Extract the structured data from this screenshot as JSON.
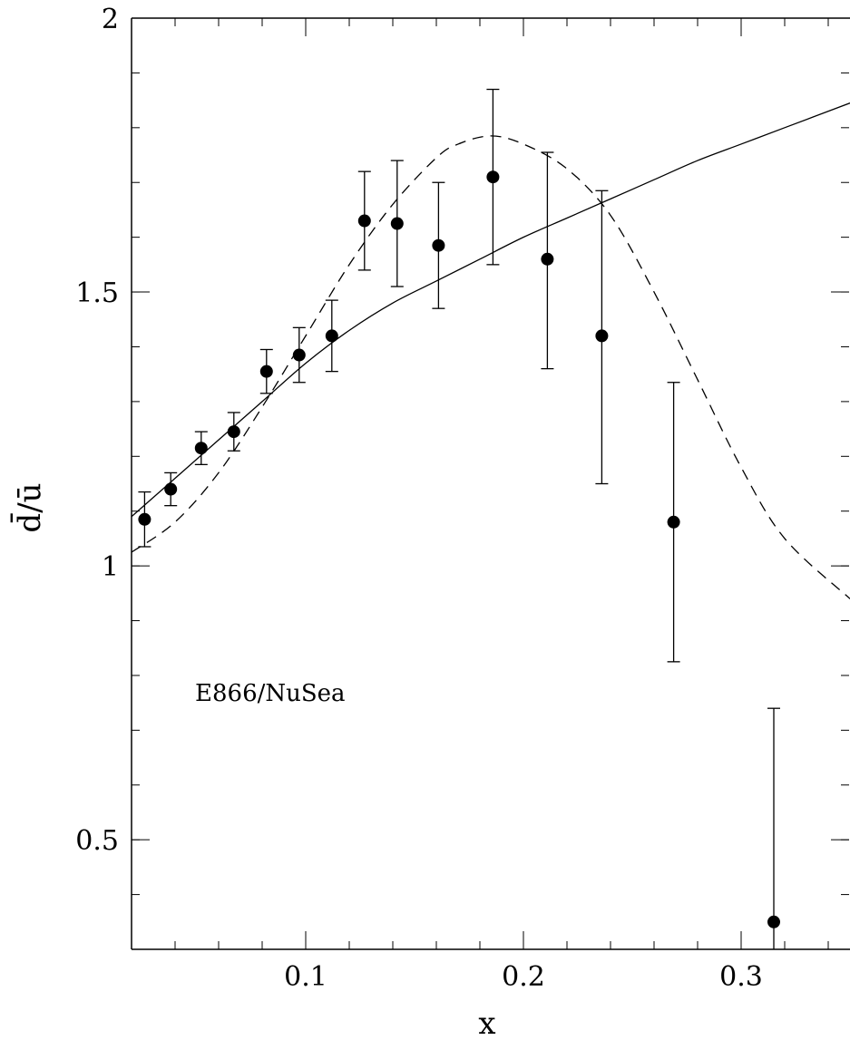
{
  "chart_data": {
    "type": "scatter",
    "xlabel": "x",
    "ylabel": "d̄/ū",
    "xlim": [
      0.02,
      0.35
    ],
    "ylim": [
      0.3,
      2.0
    ],
    "x_ticks": [
      0.1,
      0.2,
      0.3
    ],
    "x_tick_labels": [
      "0.1",
      "0.2",
      "0.3"
    ],
    "y_ticks": [
      0.5,
      1.0,
      1.5,
      2.0
    ],
    "y_tick_labels": [
      "0.5",
      "1",
      "1.5",
      "2"
    ],
    "grid": false,
    "annotation": "E866/NuSea",
    "series": [
      {
        "kind": "points_with_errorbars",
        "x": [
          0.026,
          0.038,
          0.052,
          0.067,
          0.082,
          0.097,
          0.112,
          0.127,
          0.142,
          0.161,
          0.186,
          0.211,
          0.236,
          0.269,
          0.315
        ],
        "y": [
          1.085,
          1.14,
          1.215,
          1.245,
          1.355,
          1.385,
          1.42,
          1.63,
          1.625,
          1.585,
          1.71,
          1.56,
          1.42,
          1.08,
          0.35
        ],
        "yerr_low": [
          0.05,
          0.03,
          0.03,
          0.035,
          0.04,
          0.05,
          0.065,
          0.09,
          0.115,
          0.115,
          0.16,
          0.2,
          0.27,
          0.255,
          0.4
        ],
        "yerr_high": [
          0.05,
          0.03,
          0.03,
          0.035,
          0.04,
          0.05,
          0.065,
          0.09,
          0.115,
          0.115,
          0.16,
          0.195,
          0.265,
          0.255,
          0.39
        ]
      },
      {
        "kind": "curve",
        "style": "solid",
        "x": [
          0.02,
          0.04,
          0.06,
          0.08,
          0.1,
          0.12,
          0.14,
          0.16,
          0.18,
          0.2,
          0.22,
          0.24,
          0.26,
          0.28,
          0.3,
          0.32,
          0.35
        ],
        "y": [
          1.09,
          1.16,
          1.23,
          1.3,
          1.37,
          1.43,
          1.48,
          1.52,
          1.56,
          1.6,
          1.635,
          1.67,
          1.705,
          1.74,
          1.77,
          1.8,
          1.845
        ]
      },
      {
        "kind": "curve",
        "style": "dashed",
        "x": [
          0.02,
          0.04,
          0.06,
          0.08,
          0.1,
          0.12,
          0.14,
          0.16,
          0.17,
          0.185,
          0.2,
          0.22,
          0.24,
          0.26,
          0.28,
          0.3,
          0.32,
          0.35
        ],
        "y": [
          1.025,
          1.08,
          1.17,
          1.29,
          1.42,
          1.55,
          1.66,
          1.745,
          1.77,
          1.785,
          1.77,
          1.725,
          1.64,
          1.5,
          1.34,
          1.18,
          1.05,
          0.94
        ]
      }
    ]
  }
}
